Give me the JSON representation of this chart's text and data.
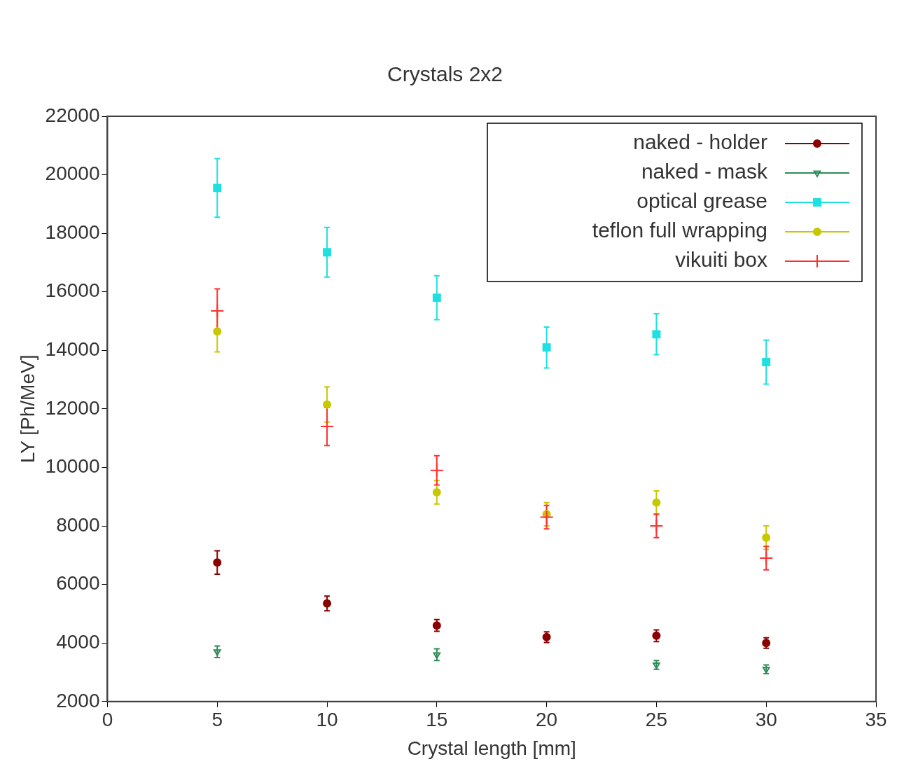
{
  "chart_data": {
    "type": "scatter",
    "title": "Crystals 2x2",
    "xlabel": "Crystal length [mm]",
    "ylabel": "LY [Ph/MeV]",
    "x": [
      5,
      10,
      15,
      20,
      25,
      30
    ],
    "xlim": [
      0,
      35
    ],
    "xticks": [
      0,
      5,
      10,
      15,
      20,
      25,
      30,
      35
    ],
    "ylim": [
      2000,
      22000
    ],
    "yticks": [
      2000,
      4000,
      6000,
      8000,
      10000,
      12000,
      14000,
      16000,
      18000,
      20000,
      22000
    ],
    "grid": false,
    "legend": "top right",
    "series": [
      {
        "name": "naked - holder",
        "color": "#8b0000",
        "marker": "circle",
        "values": [
          6750,
          5350,
          4600,
          4200,
          4250,
          4000
        ],
        "errors": [
          400,
          250,
          200,
          180,
          200,
          180
        ]
      },
      {
        "name": "naked - mask",
        "color": "#2e8b57",
        "marker": "triangle",
        "values": [
          3700,
          null,
          3600,
          null,
          3250,
          3100
        ],
        "errors": [
          200,
          null,
          200,
          null,
          150,
          150
        ]
      },
      {
        "name": "optical grease",
        "color": "#1ee0e0",
        "marker": "square",
        "values": [
          19550,
          17350,
          15800,
          14100,
          14550,
          13600
        ],
        "errors": [
          1000,
          850,
          750,
          700,
          700,
          750
        ]
      },
      {
        "name": "teflon full wrapping",
        "color": "#c8c800",
        "marker": "circle",
        "values": [
          14650,
          12150,
          9150,
          8400,
          8800,
          7600
        ],
        "errors": [
          700,
          600,
          400,
          400,
          400,
          400
        ]
      },
      {
        "name": "vikuiti box",
        "color": "#ff3030",
        "marker": "cross",
        "values": [
          15350,
          11400,
          9900,
          8300,
          8000,
          6900
        ],
        "errors": [
          750,
          650,
          500,
          400,
          400,
          400
        ]
      }
    ]
  }
}
